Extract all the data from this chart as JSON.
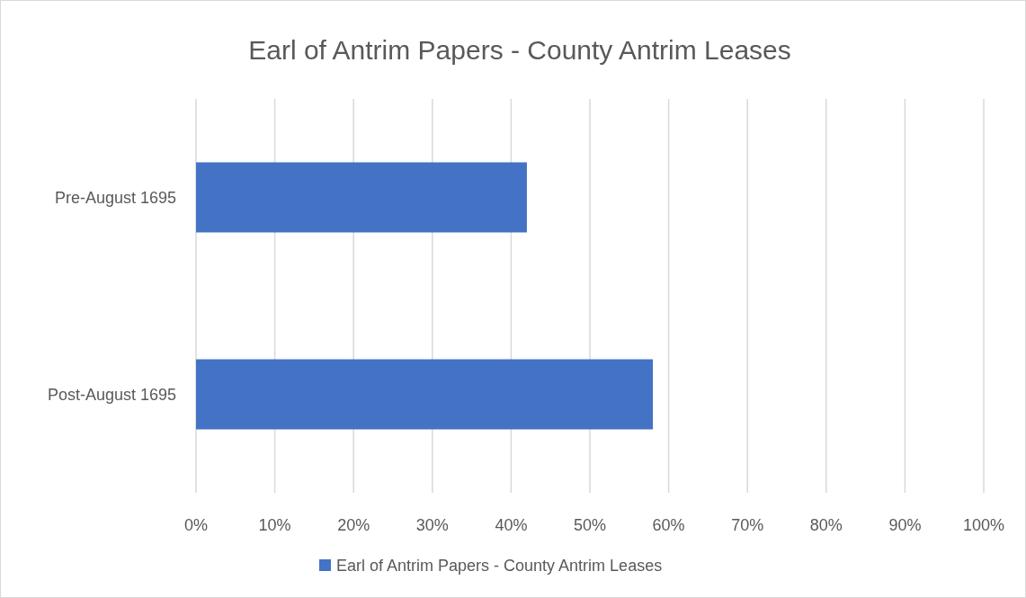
{
  "chart_data": {
    "type": "bar",
    "orientation": "horizontal",
    "title": "Earl of Antrim Papers - County Antrim Leases",
    "categories": [
      "Pre-August 1695",
      "Post-August 1695"
    ],
    "series": [
      {
        "name": "Earl of Antrim Papers - County Antrim Leases",
        "color": "#4472c4",
        "values": [
          42,
          58
        ]
      }
    ],
    "xlim": [
      0,
      100
    ],
    "xticks": [
      {
        "value": 0,
        "label": "0%"
      },
      {
        "value": 10,
        "label": "10%"
      },
      {
        "value": 20,
        "label": "20%"
      },
      {
        "value": 30,
        "label": "30%"
      },
      {
        "value": 40,
        "label": "40%"
      },
      {
        "value": 50,
        "label": "50%"
      },
      {
        "value": 60,
        "label": "60%"
      },
      {
        "value": 70,
        "label": "70%"
      },
      {
        "value": 80,
        "label": "80%"
      },
      {
        "value": 90,
        "label": "90%"
      },
      {
        "value": 100,
        "label": "100%"
      }
    ],
    "grid": "x",
    "legend": "bottom"
  }
}
